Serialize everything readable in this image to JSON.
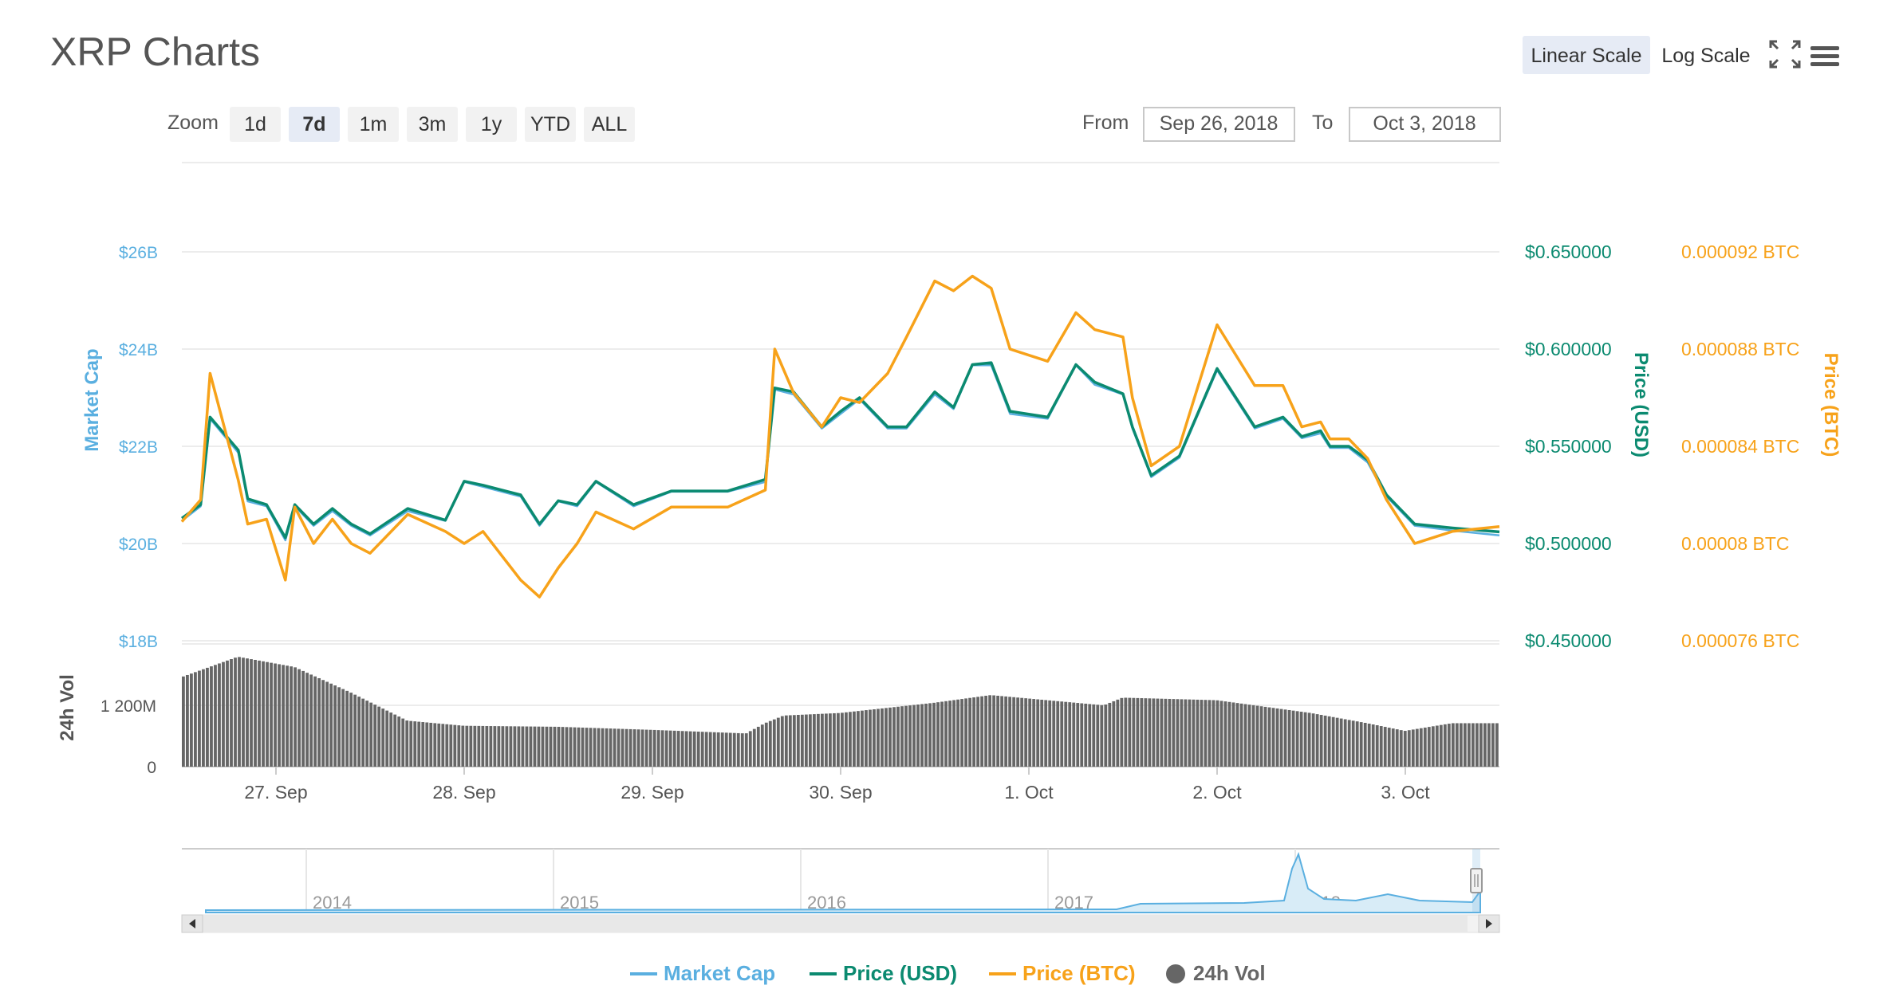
{
  "title": "XRP Charts",
  "scale_buttons": {
    "linear": "Linear Scale",
    "log": "Log Scale"
  },
  "icons": {
    "fullscreen": "fullscreen-icon",
    "menu": "hamburger-menu-icon"
  },
  "zoom": {
    "label": "Zoom",
    "options": [
      "1d",
      "7d",
      "1m",
      "3m",
      "1y",
      "YTD",
      "ALL"
    ],
    "selected": "7d"
  },
  "range": {
    "from_label": "From",
    "from_value": "Sep 26, 2018",
    "to_label": "To",
    "to_value": "Oct 3, 2018"
  },
  "colors": {
    "market_cap": "#5aafe0",
    "price_usd": "#0b8a70",
    "price_btc": "#f7a21a",
    "volume": "#666666"
  },
  "chart_data": {
    "type": "line",
    "x_tick_labels": [
      "27. Sep",
      "28. Sep",
      "29. Sep",
      "30. Sep",
      "1. Oct",
      "2. Oct",
      "3. Oct"
    ],
    "axes": {
      "market_cap": {
        "label": "Market Cap",
        "ticks": [
          "$18B",
          "$20B",
          "$22B",
          "$24B",
          "$26B"
        ],
        "ylim": [
          18,
          26
        ]
      },
      "price_usd": {
        "label": "Price (USD)",
        "ticks": [
          "$0.450000",
          "$0.500000",
          "$0.550000",
          "$0.600000",
          "$0.650000"
        ],
        "ylim": [
          0.45,
          0.65
        ]
      },
      "price_btc": {
        "label": "Price (BTC)",
        "ticks": [
          "0.000076 BTC",
          "0.00008 BTC",
          "0.000084 BTC",
          "0.000088 BTC",
          "0.000092 BTC"
        ],
        "ylim": [
          7.6e-05,
          9.2e-05
        ]
      },
      "volume": {
        "label": "24h Vol",
        "ticks": [
          "0",
          "1 200M"
        ],
        "ylim": [
          0,
          2400
        ]
      }
    },
    "x_range_days": [
      0,
      7
    ],
    "series": [
      {
        "name": "Price (USD)",
        "x": [
          0,
          0.1,
          0.15,
          0.3,
          0.35,
          0.45,
          0.55,
          0.6,
          0.7,
          0.8,
          0.9,
          1.0,
          1.2,
          1.4,
          1.5,
          1.6,
          1.8,
          1.9,
          2.0,
          2.1,
          2.2,
          2.4,
          2.6,
          2.9,
          3.1,
          3.15,
          3.25,
          3.4,
          3.5,
          3.6,
          3.75,
          3.85,
          4.0,
          4.1,
          4.2,
          4.3,
          4.4,
          4.6,
          4.75,
          4.85,
          5.0,
          5.05,
          5.15,
          5.3,
          5.5,
          5.7,
          5.85,
          5.95,
          6.05,
          6.1,
          6.2,
          6.3,
          6.4,
          6.55,
          6.75,
          7.0
        ],
        "values": [
          0.513,
          0.52,
          0.565,
          0.548,
          0.523,
          0.52,
          0.503,
          0.52,
          0.51,
          0.518,
          0.51,
          0.505,
          0.518,
          0.512,
          0.532,
          0.53,
          0.525,
          0.51,
          0.522,
          0.52,
          0.532,
          0.52,
          0.527,
          0.527,
          0.533,
          0.58,
          0.578,
          0.56,
          0.568,
          0.575,
          0.56,
          0.56,
          0.578,
          0.57,
          0.592,
          0.593,
          0.568,
          0.565,
          0.592,
          0.583,
          0.577,
          0.56,
          0.535,
          0.545,
          0.59,
          0.56,
          0.565,
          0.555,
          0.558,
          0.55,
          0.55,
          0.543,
          0.525,
          0.51,
          0.508,
          0.506
        ]
      },
      {
        "name": "Price (BTC)",
        "x": [
          0,
          0.1,
          0.15,
          0.3,
          0.35,
          0.45,
          0.55,
          0.6,
          0.7,
          0.8,
          0.9,
          1.0,
          1.2,
          1.4,
          1.5,
          1.6,
          1.8,
          1.9,
          2.0,
          2.1,
          2.2,
          2.4,
          2.6,
          2.9,
          3.1,
          3.15,
          3.25,
          3.4,
          3.5,
          3.6,
          3.75,
          3.85,
          4.0,
          4.1,
          4.2,
          4.3,
          4.4,
          4.6,
          4.75,
          4.85,
          5.0,
          5.05,
          5.15,
          5.3,
          5.5,
          5.7,
          5.85,
          5.95,
          6.05,
          6.1,
          6.2,
          6.3,
          6.4,
          6.55,
          6.75,
          7.0
        ],
        "values": [
          8.09e-05,
          8.18e-05,
          8.7e-05,
          8.26e-05,
          8.08e-05,
          8.1e-05,
          7.85e-05,
          8.15e-05,
          8e-05,
          8.1e-05,
          8e-05,
          7.96e-05,
          8.12e-05,
          8.05e-05,
          8e-05,
          8.05e-05,
          7.85e-05,
          7.78e-05,
          7.9e-05,
          8e-05,
          8.13e-05,
          8.06e-05,
          8.15e-05,
          8.15e-05,
          8.22e-05,
          8.8e-05,
          8.62e-05,
          8.48e-05,
          8.6e-05,
          8.58e-05,
          8.7e-05,
          8.85e-05,
          9.08e-05,
          9.04e-05,
          9.1e-05,
          9.05e-05,
          8.8e-05,
          8.75e-05,
          8.95e-05,
          8.88e-05,
          8.85e-05,
          8.6e-05,
          8.32e-05,
          8.4e-05,
          8.9e-05,
          8.65e-05,
          8.65e-05,
          8.48e-05,
          8.5e-05,
          8.43e-05,
          8.43e-05,
          8.35e-05,
          8.18e-05,
          8e-05,
          8.05e-05,
          8.07e-05
        ]
      },
      {
        "name": "Market Cap",
        "x": [
          0,
          0.1,
          0.15,
          0.3,
          0.35,
          0.45,
          0.55,
          0.6,
          0.7,
          0.8,
          0.9,
          1.0,
          1.2,
          1.4,
          1.5,
          1.6,
          1.8,
          1.9,
          2.0,
          2.1,
          2.2,
          2.4,
          2.6,
          2.9,
          3.1,
          3.15,
          3.25,
          3.4,
          3.5,
          3.6,
          3.75,
          3.85,
          4.0,
          4.1,
          4.2,
          4.3,
          4.4,
          4.6,
          4.75,
          4.85,
          5.0,
          5.05,
          5.15,
          5.3,
          5.5,
          5.7,
          5.85,
          5.95,
          6.05,
          6.1,
          6.2,
          6.3,
          6.4,
          6.55,
          6.75,
          7.0
        ],
        "values": [
          20.5,
          20.8,
          22.6,
          21.9,
          20.9,
          20.8,
          20.1,
          20.8,
          20.4,
          20.7,
          20.4,
          20.2,
          20.7,
          20.5,
          21.3,
          21.2,
          21.0,
          20.4,
          20.9,
          20.8,
          21.3,
          20.8,
          21.1,
          21.1,
          21.3,
          23.2,
          23.1,
          22.4,
          22.7,
          23.0,
          22.4,
          22.4,
          23.1,
          22.8,
          23.7,
          23.7,
          22.7,
          22.6,
          23.7,
          23.3,
          23.1,
          22.4,
          21.4,
          21.8,
          23.6,
          22.4,
          22.6,
          22.2,
          22.3,
          22.0,
          22.0,
          21.7,
          21.0,
          20.4,
          20.3,
          20.2
        ]
      },
      {
        "name": "24h Vol",
        "x": [
          0,
          0.3,
          0.6,
          0.9,
          1.2,
          1.5,
          2.0,
          2.5,
          3.0,
          3.1,
          3.2,
          3.5,
          4.0,
          4.3,
          4.6,
          4.9,
          5.0,
          5.5,
          6.0,
          6.3,
          6.5,
          6.75,
          7.0
        ],
        "values": [
          1750,
          2150,
          1950,
          1450,
          900,
          800,
          780,
          720,
          650,
          850,
          1000,
          1050,
          1250,
          1400,
          1300,
          1200,
          1350,
          1300,
          1050,
          850,
          700,
          850,
          850
        ]
      }
    ],
    "navigator": {
      "tick_labels": [
        "2014",
        "2015",
        "2016",
        "2017",
        "2018"
      ]
    },
    "legend": [
      "Market Cap",
      "Price (USD)",
      "Price (BTC)",
      "24h Vol"
    ],
    "legend_position": "bottom-center"
  }
}
